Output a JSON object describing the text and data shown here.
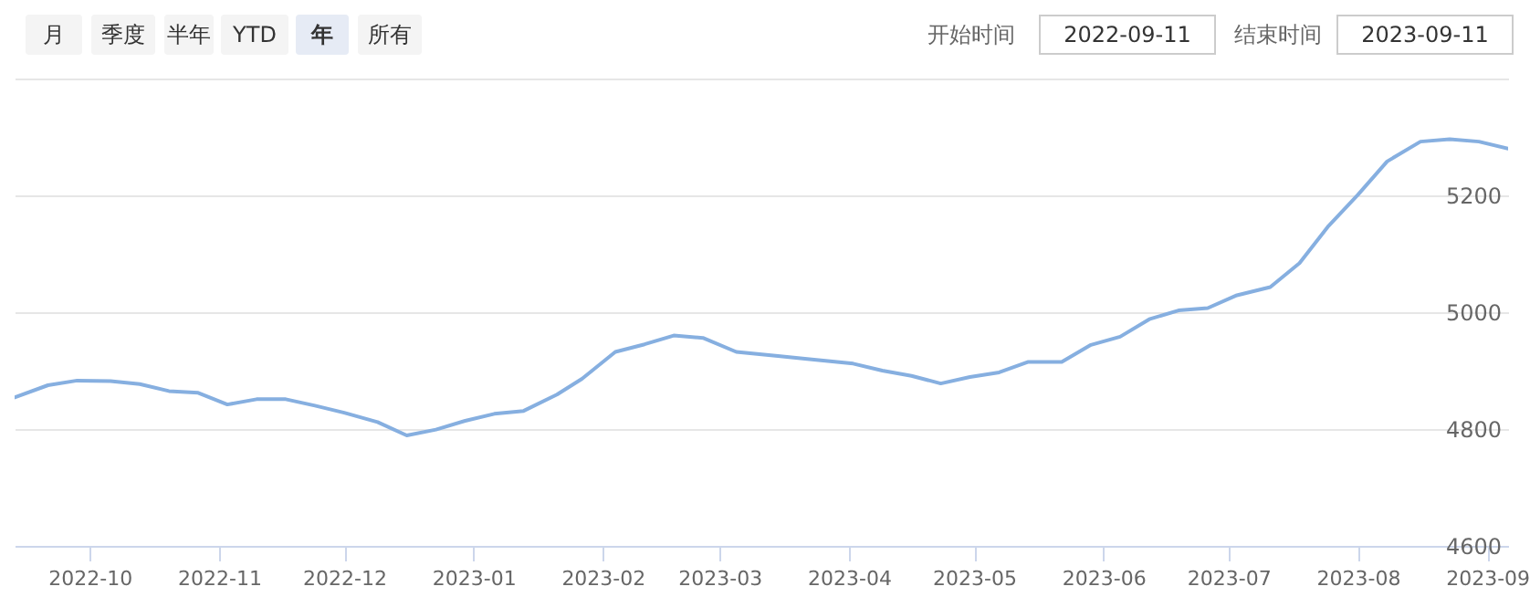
{
  "chart_data": {
    "type": "line",
    "annotations": [
      "月",
      "季度",
      "半年",
      "YTD",
      "年",
      "所有",
      "开始时间",
      "2022-09-11",
      "结束时间",
      "2023-09-11"
    ],
    "x": [
      "2022-09-13",
      "2022-09-21",
      "2022-09-28",
      "2022-10-06",
      "2022-10-13",
      "2022-10-20",
      "2022-10-27",
      "2022-11-03",
      "2022-11-10",
      "2022-11-17",
      "2022-11-24",
      "2022-12-01",
      "2022-12-09",
      "2022-12-16",
      "2022-12-23",
      "2022-12-30",
      "2023-01-06",
      "2023-01-13",
      "2023-01-21",
      "2023-01-27",
      "2023-02-04",
      "2023-02-11",
      "2023-02-18",
      "2023-02-25",
      "2023-03-05",
      "2023-03-15",
      "2023-03-22",
      "2023-04-02",
      "2023-04-09",
      "2023-04-16",
      "2023-04-23",
      "2023-04-30",
      "2023-05-07",
      "2023-05-14",
      "2023-05-22",
      "2023-05-29",
      "2023-06-05",
      "2023-06-12",
      "2023-06-19",
      "2023-06-26",
      "2023-07-03",
      "2023-07-11",
      "2023-07-18",
      "2023-07-25",
      "2023-08-01",
      "2023-08-08",
      "2023-08-16",
      "2023-08-23",
      "2023-08-30",
      "2023-09-06"
    ],
    "series": [
      {
        "color": "#86afe0",
        "values": [
          4854,
          4875,
          4883,
          4882,
          4877,
          4865,
          4862,
          4842,
          4851,
          4851,
          4840,
          4828,
          4812,
          4789,
          4799,
          4814,
          4826,
          4831,
          4859,
          4886,
          4932,
          4945,
          4960,
          4956,
          4932,
          4925,
          4920,
          4912,
          4900,
          4891,
          4878,
          4889,
          4897,
          4915,
          4915,
          4944,
          4958,
          4988,
          5003,
          5007,
          5029,
          5043,
          5084,
          5148,
          5201,
          5258,
          5292,
          5296,
          5292,
          5280
        ]
      }
    ],
    "xlim": [
      "2022-09-13",
      "2023-09-06"
    ],
    "xticks": [
      "2022-10",
      "2022-11",
      "2022-12",
      "2023-01",
      "2023-02",
      "2023-03",
      "2023-04",
      "2023-05",
      "2023-06",
      "2023-07",
      "2023-08",
      "2023-09"
    ],
    "ylim": [
      4600,
      5400
    ],
    "yticks": [
      4600,
      4800,
      5000,
      5200,
      {
        "value": 5400,
        "label": null
      }
    ],
    "grid": "y",
    "marker": "none",
    "line_style": "solid"
  }
}
